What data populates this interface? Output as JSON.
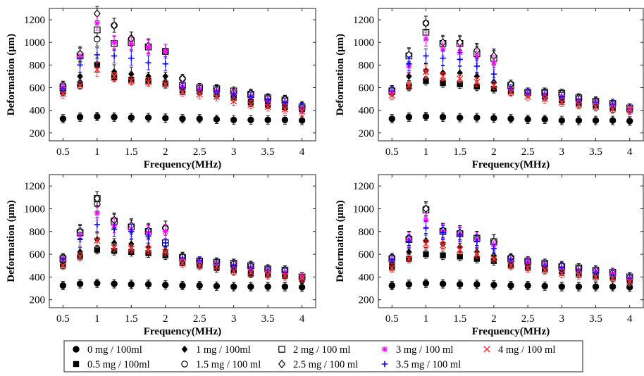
{
  "legend": [
    {
      "label": "0 mg / 100ml",
      "marker": "filled-circle",
      "color": "#000000"
    },
    {
      "label": "1 mg / 100ml",
      "marker": "filled-diamond",
      "color": "#000000"
    },
    {
      "label": "2 mg / 100 ml",
      "marker": "open-square",
      "color": "#000000"
    },
    {
      "label": "3 mg / 100 ml",
      "marker": "star",
      "color": "#ff00ff"
    },
    {
      "label": "4 mg / 100 ml",
      "marker": "x-cross",
      "color": "#ff3030"
    },
    {
      "label": "0.5 mg / 100ml",
      "marker": "filled-square",
      "color": "#000000"
    },
    {
      "label": "1.5 mg / 100 ml",
      "marker": "open-circle",
      "color": "#000000"
    },
    {
      "label": "2.5 mg / 100 ml",
      "marker": "open-diamond",
      "color": "#000000"
    },
    {
      "label": "3.5 mg / 100 ml",
      "marker": "plus",
      "color": "#0000ff"
    }
  ],
  "chart_data": [
    {
      "type": "scatter",
      "xlabel": "Frequency(MHz)",
      "ylabel": "Deformation (μm)",
      "xlim": [
        0.3,
        4.2
      ],
      "ylim": [
        130,
        1300
      ],
      "xticks": [
        "0.5",
        "1",
        "1.5",
        "2",
        "2.5",
        "3",
        "3.5",
        "4"
      ],
      "yticks": [
        "200",
        "400",
        "600",
        "800",
        "1000",
        "1200"
      ],
      "x": [
        0.5,
        0.75,
        1,
        1.25,
        1.5,
        1.75,
        2,
        2.25,
        2.5,
        2.75,
        3,
        3.25,
        3.5,
        3.75,
        4
      ],
      "error_bars": true,
      "series": [
        {
          "name": "0 mg / 100ml",
          "values": [
            325,
            340,
            345,
            340,
            335,
            335,
            330,
            325,
            325,
            320,
            315,
            315,
            315,
            315,
            310
          ]
        },
        {
          "name": "0.5 mg / 100ml",
          "values": [
            565,
            630,
            800,
            690,
            670,
            660,
            635,
            575,
            565,
            540,
            510,
            470,
            450,
            430,
            410
          ]
        },
        {
          "name": "1 mg / 100ml",
          "values": [
            570,
            700,
            800,
            740,
            720,
            700,
            700,
            590,
            575,
            555,
            525,
            495,
            480,
            465,
            440
          ]
        },
        {
          "name": "1.5 mg / 100 ml",
          "values": [
            620,
            890,
            1030,
            1150,
            1030,
            960,
            920,
            680,
            600,
            585,
            560,
            550,
            510,
            495,
            430
          ]
        },
        {
          "name": "2 mg / 100 ml",
          "values": [
            600,
            880,
            1110,
            990,
            1000,
            960,
            920,
            620,
            600,
            590,
            570,
            540,
            510,
            490,
            430
          ]
        },
        {
          "name": "2.5 mg / 100 ml",
          "values": [
            620,
            900,
            1255,
            1150,
            1030,
            970,
            920,
            680,
            600,
            585,
            560,
            550,
            510,
            495,
            430
          ]
        },
        {
          "name": "3 mg / 100 ml",
          "values": [
            600,
            880,
            1170,
            1000,
            990,
            960,
            920,
            610,
            590,
            570,
            550,
            520,
            490,
            470,
            420
          ]
        },
        {
          "name": "3.5 mg / 100 ml",
          "values": [
            590,
            800,
            890,
            880,
            860,
            820,
            810,
            600,
            580,
            565,
            545,
            525,
            495,
            470,
            425
          ]
        },
        {
          "name": "4 mg / 100 ml",
          "values": [
            545,
            620,
            760,
            700,
            660,
            650,
            630,
            560,
            540,
            520,
            480,
            450,
            430,
            410,
            390
          ]
        }
      ]
    },
    {
      "type": "scatter",
      "xlabel": "Frequency(MHz)",
      "ylabel": "Deformation (μm)",
      "xlim": [
        0.3,
        4.2
      ],
      "ylim": [
        130,
        1300
      ],
      "xticks": [
        "0.5",
        "1",
        "1.5",
        "2",
        "2.5",
        "3",
        "3.5",
        "4"
      ],
      "yticks": [
        "200",
        "400",
        "600",
        "800",
        "1000",
        "1200"
      ],
      "x": [
        0.5,
        0.75,
        1,
        1.25,
        1.5,
        1.75,
        2,
        2.25,
        2.5,
        2.75,
        3,
        3.25,
        3.5,
        3.75,
        4
      ],
      "error_bars": true,
      "series": [
        {
          "name": "0 mg / 100ml",
          "values": [
            325,
            340,
            345,
            340,
            335,
            335,
            330,
            325,
            320,
            320,
            310,
            310,
            310,
            310,
            305
          ]
        },
        {
          "name": "0.5 mg / 100ml",
          "values": [
            560,
            610,
            660,
            640,
            630,
            610,
            590,
            570,
            550,
            520,
            490,
            460,
            440,
            420,
            410
          ]
        },
        {
          "name": "1 mg / 100ml",
          "values": [
            560,
            700,
            750,
            730,
            730,
            700,
            650,
            600,
            560,
            540,
            510,
            490,
            470,
            450,
            420
          ]
        },
        {
          "name": "1.5 mg / 100 ml",
          "values": [
            580,
            880,
            1170,
            990,
            990,
            920,
            870,
            620,
            560,
            560,
            550,
            510,
            480,
            460,
            420
          ]
        },
        {
          "name": "2 mg / 100 ml",
          "values": [
            570,
            880,
            1090,
            990,
            990,
            900,
            860,
            620,
            560,
            560,
            550,
            510,
            480,
            460,
            420
          ]
        },
        {
          "name": "2.5 mg / 100 ml",
          "values": [
            580,
            890,
            1170,
            1000,
            1000,
            930,
            880,
            630,
            560,
            560,
            550,
            510,
            480,
            460,
            420
          ]
        },
        {
          "name": "3 mg / 100 ml",
          "values": [
            560,
            790,
            1030,
            940,
            910,
            880,
            820,
            590,
            550,
            540,
            520,
            490,
            470,
            450,
            410
          ]
        },
        {
          "name": "3.5 mg / 100 ml",
          "values": [
            570,
            810,
            880,
            860,
            850,
            790,
            720,
            590,
            550,
            540,
            520,
            490,
            470,
            450,
            410
          ]
        },
        {
          "name": "4 mg / 100 ml",
          "values": [
            530,
            620,
            740,
            700,
            680,
            650,
            620,
            560,
            520,
            500,
            470,
            450,
            430,
            410,
            400
          ]
        }
      ]
    },
    {
      "type": "scatter",
      "xlabel": "Frequency(MHz)",
      "ylabel": "Deformation (μm)",
      "xlim": [
        0.3,
        4.2
      ],
      "ylim": [
        130,
        1300
      ],
      "xticks": [
        "0.5",
        "1",
        "1.5",
        "2",
        "2.5",
        "3",
        "3.5",
        "4"
      ],
      "yticks": [
        "200",
        "400",
        "600",
        "800",
        "1000",
        "1200"
      ],
      "x": [
        0.5,
        0.75,
        1,
        1.25,
        1.5,
        1.75,
        2,
        2.25,
        2.5,
        2.75,
        3,
        3.25,
        3.5,
        3.75,
        4
      ],
      "error_bars": true,
      "series": [
        {
          "name": "0 mg / 100ml",
          "values": [
            325,
            340,
            345,
            340,
            335,
            335,
            330,
            325,
            325,
            320,
            315,
            315,
            315,
            315,
            310
          ]
        },
        {
          "name": "0.5 mg / 100ml",
          "values": [
            510,
            580,
            640,
            630,
            620,
            610,
            590,
            520,
            500,
            480,
            460,
            430,
            420,
            410,
            380
          ]
        },
        {
          "name": "1 mg / 100ml",
          "values": [
            540,
            620,
            730,
            700,
            690,
            660,
            630,
            550,
            530,
            510,
            490,
            460,
            440,
            430,
            390
          ]
        },
        {
          "name": "1.5 mg / 100 ml",
          "values": [
            570,
            800,
            1040,
            900,
            840,
            800,
            830,
            580,
            540,
            530,
            520,
            500,
            470,
            460,
            400
          ]
        },
        {
          "name": "2 mg / 100 ml",
          "values": [
            560,
            790,
            1090,
            890,
            840,
            800,
            700,
            570,
            540,
            530,
            520,
            500,
            470,
            460,
            400
          ]
        },
        {
          "name": "2.5 mg / 100 ml",
          "values": [
            570,
            800,
            1090,
            900,
            850,
            810,
            830,
            580,
            540,
            530,
            520,
            500,
            470,
            460,
            400
          ]
        },
        {
          "name": "3 mg / 100 ml",
          "values": [
            560,
            770,
            960,
            850,
            820,
            790,
            800,
            560,
            540,
            520,
            500,
            480,
            460,
            440,
            400
          ]
        },
        {
          "name": "3.5 mg / 100 ml",
          "values": [
            560,
            730,
            860,
            820,
            800,
            760,
            700,
            560,
            540,
            520,
            500,
            480,
            460,
            440,
            400
          ]
        },
        {
          "name": "4 mg / 100 ml",
          "values": [
            500,
            580,
            720,
            660,
            650,
            640,
            620,
            520,
            500,
            490,
            450,
            440,
            420,
            410,
            390
          ]
        }
      ]
    },
    {
      "type": "scatter",
      "xlabel": "Frequency(MHz)",
      "ylabel": "Deformation (μm)",
      "xlim": [
        0.3,
        4.2
      ],
      "ylim": [
        130,
        1300
      ],
      "xticks": [
        "0.5",
        "1",
        "1.5",
        "2",
        "2.5",
        "3",
        "3.5",
        "4"
      ],
      "yticks": [
        "200",
        "400",
        "600",
        "800",
        "1000",
        "1200"
      ],
      "x": [
        0.5,
        0.75,
        1,
        1.25,
        1.5,
        1.75,
        2,
        2.25,
        2.5,
        2.75,
        3,
        3.25,
        3.5,
        3.75,
        4
      ],
      "error_bars": true,
      "series": [
        {
          "name": "0 mg / 100ml",
          "values": [
            325,
            335,
            345,
            340,
            335,
            335,
            330,
            325,
            325,
            320,
            315,
            315,
            315,
            315,
            310
          ]
        },
        {
          "name": "0.5 mg / 100ml",
          "values": [
            490,
            560,
            600,
            590,
            580,
            560,
            540,
            500,
            490,
            470,
            450,
            430,
            410,
            400,
            370
          ]
        },
        {
          "name": "1 mg / 100ml",
          "values": [
            520,
            620,
            720,
            690,
            660,
            620,
            590,
            520,
            500,
            490,
            470,
            450,
            430,
            410,
            380
          ]
        },
        {
          "name": "1.5 mg / 100 ml",
          "values": [
            570,
            740,
            1000,
            810,
            780,
            740,
            710,
            570,
            540,
            520,
            490,
            480,
            460,
            440,
            400
          ]
        },
        {
          "name": "2 mg / 100 ml",
          "values": [
            560,
            730,
            990,
            800,
            780,
            740,
            710,
            560,
            540,
            520,
            490,
            480,
            460,
            440,
            400
          ]
        },
        {
          "name": "2.5 mg / 100 ml",
          "values": [
            570,
            740,
            1000,
            810,
            790,
            740,
            710,
            570,
            540,
            520,
            500,
            480,
            460,
            440,
            400
          ]
        },
        {
          "name": "3 mg / 100 ml",
          "values": [
            550,
            730,
            900,
            800,
            780,
            730,
            680,
            550,
            530,
            510,
            480,
            460,
            450,
            430,
            390
          ]
        },
        {
          "name": "3.5 mg / 100 ml",
          "values": [
            550,
            710,
            830,
            790,
            770,
            710,
            650,
            550,
            520,
            500,
            480,
            460,
            440,
            420,
            390
          ]
        },
        {
          "name": "4 mg / 100 ml",
          "values": [
            480,
            560,
            690,
            680,
            640,
            600,
            560,
            500,
            480,
            460,
            430,
            420,
            400,
            390,
            360
          ]
        }
      ]
    }
  ]
}
